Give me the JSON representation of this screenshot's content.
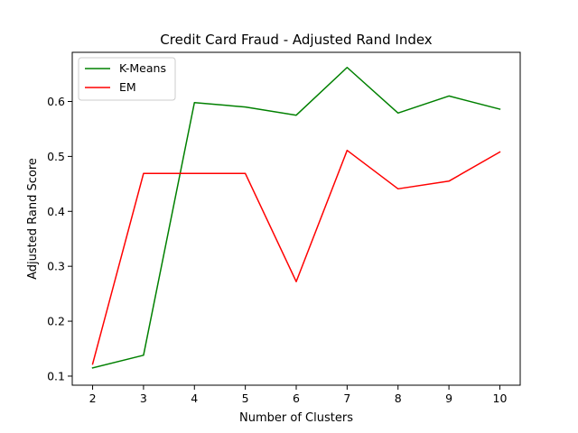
{
  "chart_data": {
    "type": "line",
    "title": "Credit Card Fraud - Adjusted Rand Index",
    "xlabel": "Number of Clusters",
    "ylabel": "Adjusted Rand Score",
    "x": [
      2,
      3,
      4,
      5,
      6,
      7,
      8,
      9,
      10
    ],
    "xlim": [
      1.6,
      10.4
    ],
    "ylim": [
      0.0835,
      0.6895
    ],
    "x_ticks": [
      "2",
      "3",
      "4",
      "5",
      "6",
      "7",
      "8",
      "9",
      "10"
    ],
    "y_ticks": [
      "0.1",
      "0.2",
      "0.3",
      "0.4",
      "0.5",
      "0.6"
    ],
    "y_tick_values": [
      0.1,
      0.2,
      0.3,
      0.4,
      0.5,
      0.6
    ],
    "grid": false,
    "legend_position": "top-left",
    "series": [
      {
        "name": "K-Means",
        "color": "#008000",
        "values": [
          0.115,
          0.138,
          0.598,
          0.59,
          0.575,
          0.662,
          0.579,
          0.61,
          0.586
        ]
      },
      {
        "name": "EM",
        "color": "#ff0000",
        "values": [
          0.122,
          0.469,
          0.469,
          0.469,
          0.272,
          0.511,
          0.441,
          0.455,
          0.508
        ]
      }
    ]
  }
}
